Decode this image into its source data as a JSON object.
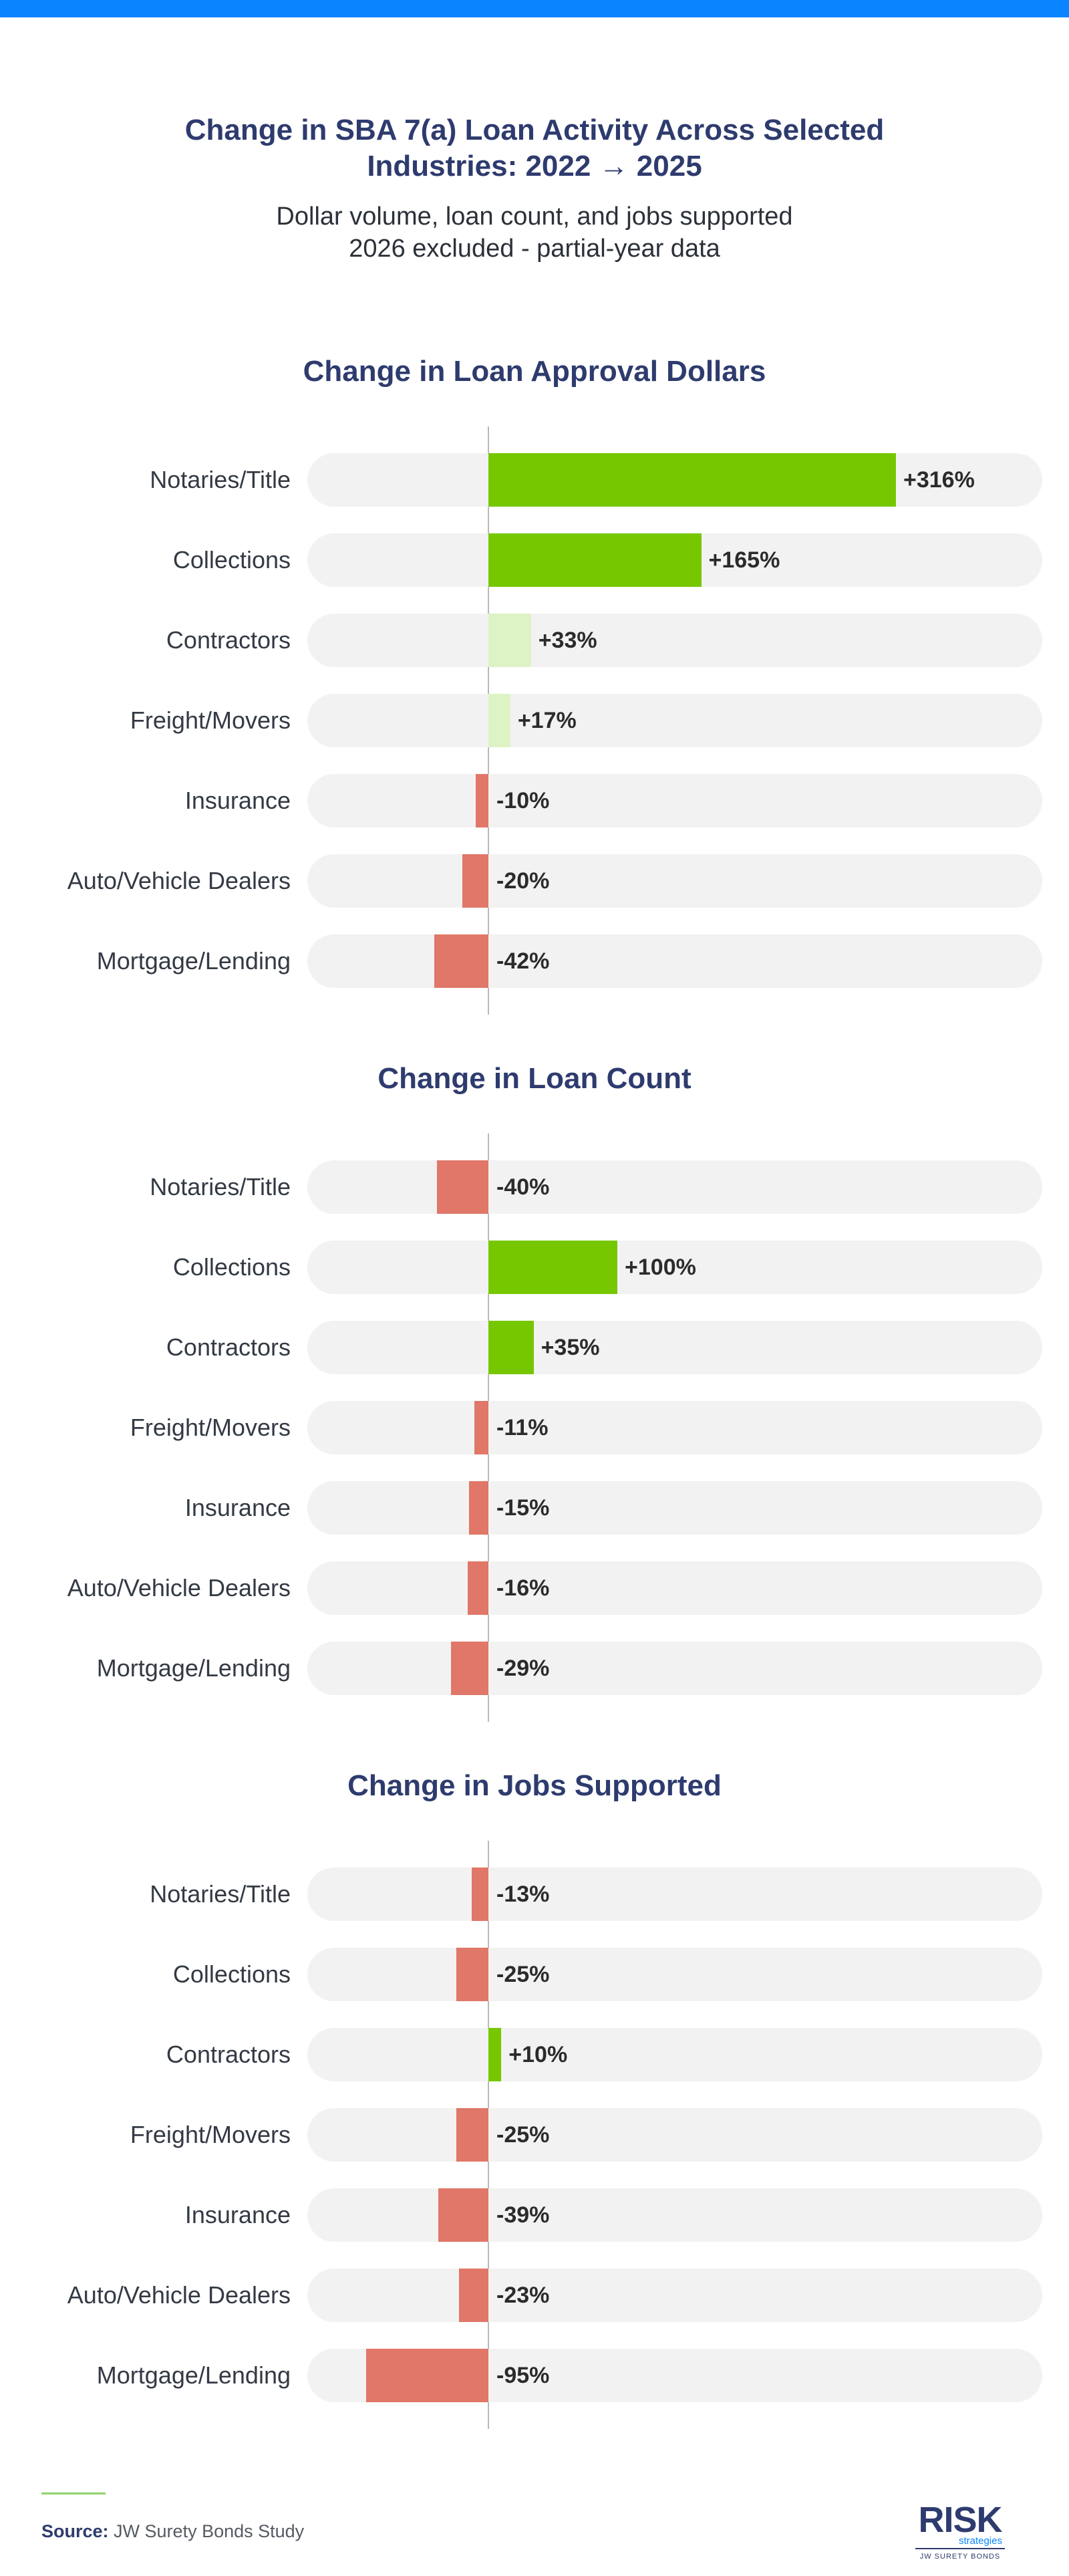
{
  "header": {
    "title": "Change in SBA 7(a) Loan Activity Across Selected Industries: 2022 → 2025",
    "subtitle_line1": "Dollar volume, loan count, and jobs supported",
    "subtitle_line2": "2026 excluded - partial-year data"
  },
  "chart_data": [
    {
      "type": "bar",
      "orientation": "horizontal",
      "title": "Change in Loan Approval Dollars",
      "unit": "%",
      "categories": [
        "Notaries/Title",
        "Collections",
        "Contractors",
        "Freight/Movers",
        "Insurance",
        "Auto/Vehicle Dealers",
        "Mortgage/Lending"
      ],
      "values": [
        316,
        165,
        33,
        17,
        -10,
        -20,
        -42
      ],
      "value_labels": [
        "+316%",
        "+165%",
        "+33%",
        "+17%",
        "-10%",
        "-20%",
        "-42%"
      ]
    },
    {
      "type": "bar",
      "orientation": "horizontal",
      "title": "Change in Loan Count",
      "unit": "%",
      "categories": [
        "Notaries/Title",
        "Collections",
        "Contractors",
        "Freight/Movers",
        "Insurance",
        "Auto/Vehicle Dealers",
        "Mortgage/Lending"
      ],
      "values": [
        -40,
        100,
        35,
        -11,
        -15,
        -16,
        -29
      ],
      "value_labels": [
        "-40%",
        "+100%",
        "+35%",
        "-11%",
        "-15%",
        "-16%",
        "-29%"
      ]
    },
    {
      "type": "bar",
      "orientation": "horizontal",
      "title": "Change in Jobs Supported",
      "unit": "%",
      "categories": [
        "Notaries/Title",
        "Collections",
        "Contractors",
        "Freight/Movers",
        "Insurance",
        "Auto/Vehicle Dealers",
        "Mortgage/Lending"
      ],
      "values": [
        -13,
        -25,
        10,
        -25,
        -39,
        -23,
        -95
      ],
      "value_labels": [
        "-13%",
        "-25%",
        "+10%",
        "-25%",
        "-39%",
        "-23%",
        "-95%"
      ]
    }
  ],
  "colors": {
    "top_bar": "#0a84ff",
    "title": "#2e3b6e",
    "positive_strong": "#76c700",
    "positive_medium": "#b0e066",
    "positive_light": "#ddf3c6",
    "negative": "#e07768",
    "track": "#f2f2f2",
    "axis": "#b8b8b8"
  },
  "footer": {
    "source_label": "Source:",
    "source_text": "JW Surety Bonds Study"
  },
  "logo": {
    "name": "RISK",
    "line2": "strategies",
    "line3": "JW SURETY BONDS"
  }
}
